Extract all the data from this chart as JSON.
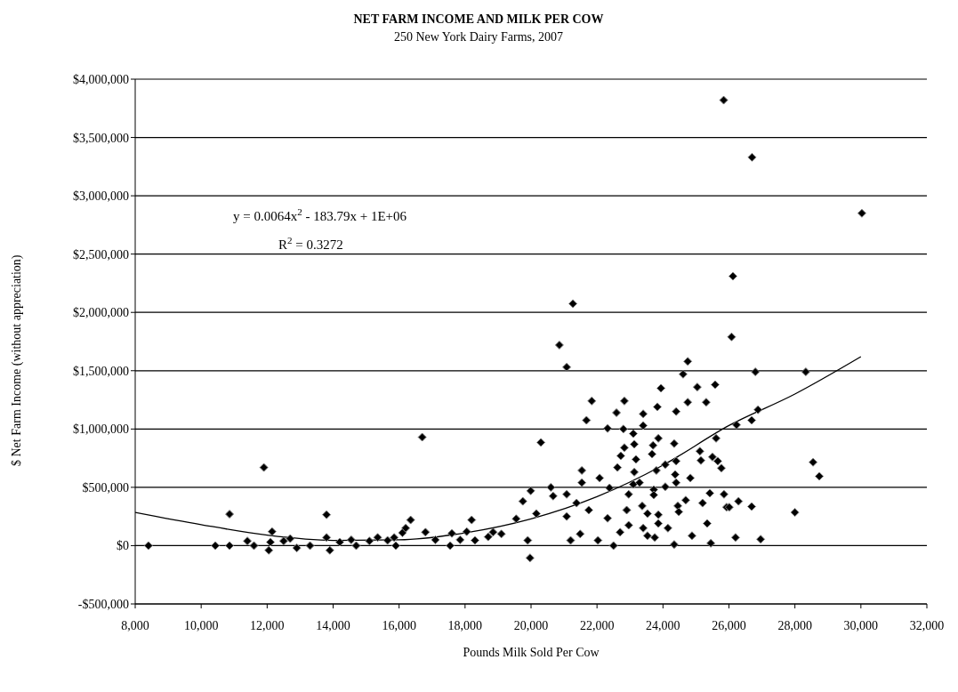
{
  "chart_data": {
    "type": "scatter",
    "title": "NET FARM INCOME AND MILK PER COW",
    "subtitle": "250 New York Dairy Farms, 2007",
    "xlabel": "Pounds Milk Sold Per Cow",
    "ylabel": "$ Net Farm Income (without appreciation)",
    "annotations": [
      "y = 0.0064x$^{2}$ - 183.79x + 1E+06",
      "R$^{2}$ = 0.3272"
    ],
    "xlim": [
      8000,
      32000
    ],
    "xticks": [
      {
        "value": 8000,
        "label": "8,000"
      },
      {
        "value": 10000,
        "label": "10,000"
      },
      {
        "value": 12000,
        "label": "12,000"
      },
      {
        "value": 14000,
        "label": "14,000"
      },
      {
        "value": 16000,
        "label": "16,000"
      },
      {
        "value": 18000,
        "label": "18,000"
      },
      {
        "value": 20000,
        "label": "20,000"
      },
      {
        "value": 22000,
        "label": "22,000"
      },
      {
        "value": 24000,
        "label": "24,000"
      },
      {
        "value": 26000,
        "label": "26,000"
      },
      {
        "value": 28000,
        "label": "28,000"
      },
      {
        "value": 30000,
        "label": "30,000"
      },
      {
        "value": 32000,
        "label": "32,000"
      }
    ],
    "ylim": [
      -500000,
      4000000
    ],
    "yticks": [
      {
        "value": -500000,
        "label": "-$500,000"
      },
      {
        "value": 0,
        "label": "$0"
      },
      {
        "value": 500000,
        "label": "$500,000"
      },
      {
        "value": 1000000,
        "label": "$1,000,000"
      },
      {
        "value": 1500000,
        "label": "$1,500,000"
      },
      {
        "value": 2000000,
        "label": "$2,000,000"
      },
      {
        "value": 2500000,
        "label": "$2,500,000"
      },
      {
        "value": 3000000,
        "label": "$3,000,000"
      },
      {
        "value": 3500000,
        "label": "$3,500,000"
      },
      {
        "value": 4000000,
        "label": "$4,000,000"
      }
    ],
    "grid": "y",
    "marker": "diamond",
    "series": [
      {
        "color": "#000000",
        "x": [
          8400,
          10430,
          10860,
          10860,
          11400,
          11600,
          11900,
          12050,
          12100,
          12150,
          12500,
          12700,
          12900,
          13300,
          13800,
          13800,
          13900,
          14200,
          14550,
          14700,
          15100,
          15350,
          15650,
          15850,
          15900,
          16100,
          16350,
          16200,
          16700,
          16800,
          17100,
          17550,
          17600,
          17850,
          18050,
          18200,
          18300,
          18700,
          18850,
          19100,
          19750,
          19990,
          20300,
          19970,
          19550,
          19900,
          20160,
          20600,
          20670,
          21080,
          21080,
          21080,
          21200,
          21380,
          21540,
          21540,
          21680,
          21840,
          21750,
          21490,
          22030,
          22080,
          22320,
          22320,
          22380,
          22500,
          22590,
          22620,
          22700,
          22720,
          22830,
          22830,
          22800,
          22900,
          22960,
          22960,
          23100,
          23130,
          23180,
          23130,
          23100,
          23290,
          23400,
          23400,
          23370,
          23400,
          23530,
          23530,
          23670,
          23700,
          23720,
          23720,
          23830,
          23860,
          23800,
          23860,
          23860,
          23940,
          23750,
          24070,
          24070,
          24150,
          24340,
          24340,
          24400,
          24400,
          24370,
          24400,
          24450,
          24480,
          24610,
          24750,
          24750,
          24690,
          24830,
          24880,
          25040,
          25120,
          25150,
          25200,
          25310,
          25420,
          25340,
          25450,
          25500,
          25580,
          25610,
          25660,
          25770,
          25850,
          25930,
          25840,
          26700,
          30030,
          26120,
          26080,
          26800,
          28330,
          26880,
          26690,
          26230,
          28550,
          28740,
          26010,
          26290,
          26690,
          28000,
          26200,
          26960,
          21270,
          20860
        ],
        "values": [
          0,
          0,
          270000,
          0,
          40000,
          0,
          670000,
          -40000,
          30000,
          120000,
          40000,
          60000,
          -20000,
          0,
          265000,
          70000,
          -40000,
          30000,
          50000,
          0,
          40000,
          70000,
          45000,
          70000,
          0,
          110000,
          220000,
          150000,
          930000,
          115000,
          50000,
          0,
          105000,
          50000,
          120000,
          220000,
          45000,
          75000,
          115000,
          100000,
          380000,
          470000,
          885000,
          -105000,
          230000,
          45000,
          275000,
          500000,
          425000,
          1530000,
          440000,
          250000,
          45000,
          365000,
          645000,
          540000,
          1075000,
          1240000,
          305000,
          100000,
          45000,
          580000,
          235000,
          1005000,
          495000,
          0,
          1140000,
          670000,
          115000,
          770000,
          1240000,
          840000,
          1000000,
          305000,
          440000,
          175000,
          960000,
          870000,
          740000,
          630000,
          525000,
          540000,
          1130000,
          1030000,
          340000,
          150000,
          275000,
          85000,
          785000,
          860000,
          480000,
          435000,
          1190000,
          920000,
          645000,
          265000,
          190000,
          1350000,
          70000,
          695000,
          505000,
          150000,
          10000,
          875000,
          1150000,
          725000,
          610000,
          540000,
          340000,
          290000,
          1470000,
          1580000,
          1230000,
          390000,
          580000,
          85000,
          1360000,
          810000,
          730000,
          365000,
          1230000,
          450000,
          190000,
          20000,
          760000,
          1380000,
          920000,
          725000,
          665000,
          440000,
          330000,
          3820000,
          3330000,
          2850000,
          2310000,
          1790000,
          1490000,
          1490000,
          1165000,
          1075000,
          1035000,
          715000,
          595000,
          330000,
          380000,
          335000,
          285000,
          70000,
          55000,
          2075000,
          1720000
        ]
      },
      {
        "type": "line",
        "color": "#000000",
        "marker": "none",
        "x": [
          8000,
          10000,
          12000,
          14000,
          16000,
          18000,
          20000,
          22000,
          24000,
          26000,
          28000,
          30000
        ],
        "values": [
          285000,
          180000,
          90000,
          45000,
          50000,
          110000,
          230000,
          420000,
          690000,
          1030000,
          1300000,
          1620000
        ]
      }
    ]
  }
}
